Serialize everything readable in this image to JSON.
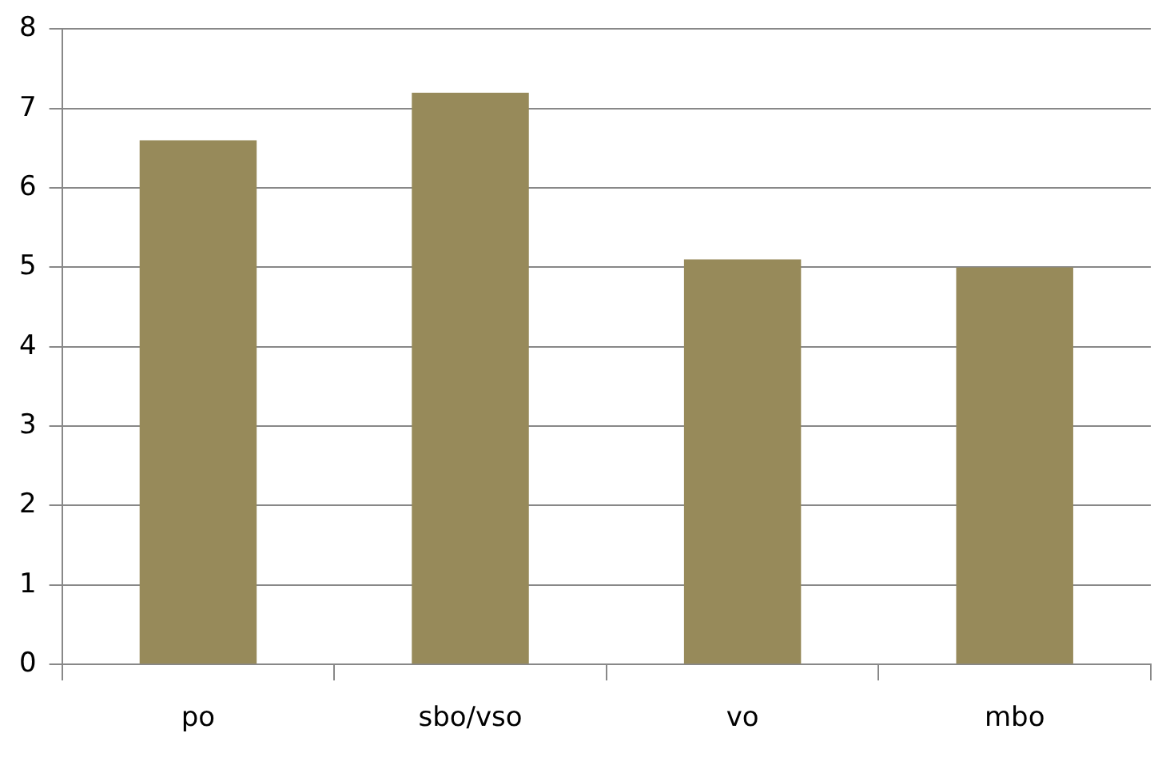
{
  "chart_data": {
    "type": "bar",
    "categories": [
      "po",
      "sbo/vso",
      "vo",
      "mbo"
    ],
    "values": [
      6.6,
      7.2,
      5.1,
      5.0
    ],
    "color": "#978a5a",
    "ylim": [
      0,
      8
    ],
    "yticks": [
      0,
      1,
      2,
      3,
      4,
      5,
      6,
      7,
      8
    ],
    "grid": "y",
    "legend": false
  }
}
